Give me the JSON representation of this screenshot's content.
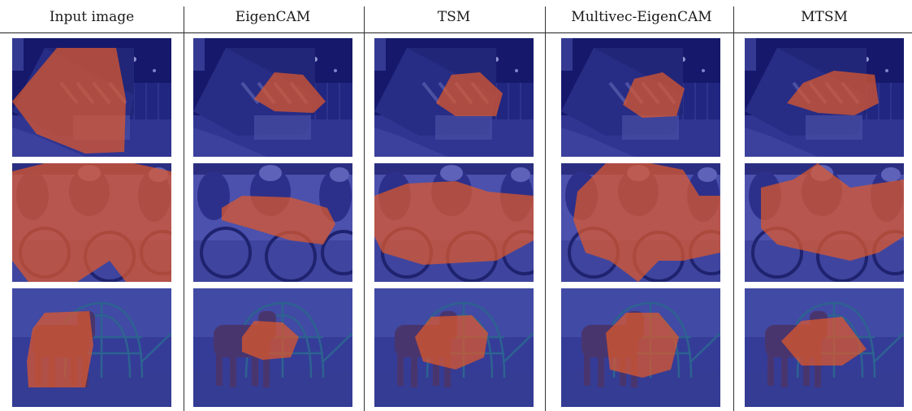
{
  "figure": {
    "columns": [
      "Input image",
      "EigenCAM",
      "TSM",
      "Multivec-EigenCAM",
      "MTSM"
    ],
    "rows": [
      {
        "scene": "train"
      },
      {
        "scene": "cyclists"
      },
      {
        "scene": "horse"
      }
    ],
    "colors": {
      "overlay_blue": "#2a2f9e",
      "overlay_red": "#e0592a",
      "train_dark": "#0c0f50",
      "cyclist_bg": "#5c64b4",
      "horse_bg": "#3a4496"
    }
  }
}
